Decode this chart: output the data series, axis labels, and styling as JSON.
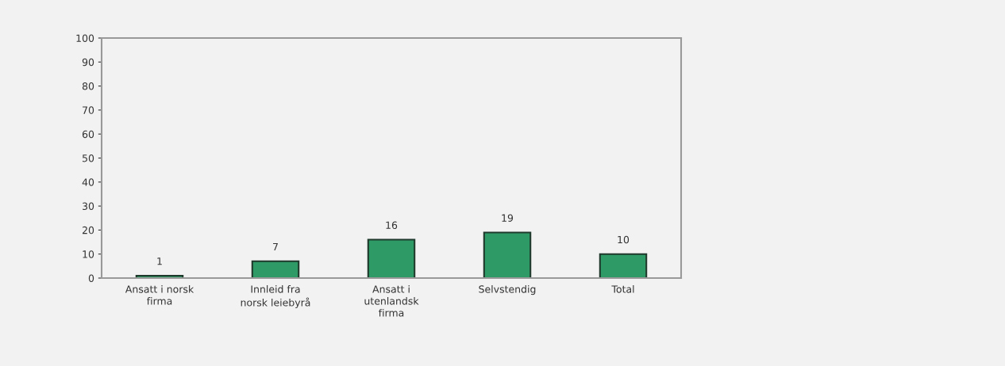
{
  "chart_data": {
    "type": "bar",
    "categories": [
      "Ansatt i norsk firma",
      "Innleid fra norsk leiebyrå",
      "Ansatt i utenlandsk firma",
      "Selvstendig",
      "Total"
    ],
    "values": [
      1,
      7,
      16,
      19,
      10
    ],
    "color": "#2e9a66",
    "ylim": [
      0,
      100
    ],
    "yticks": [
      0,
      10,
      20,
      30,
      40,
      50,
      60,
      70,
      80,
      90,
      100
    ],
    "data_labels": true,
    "grid": false
  }
}
